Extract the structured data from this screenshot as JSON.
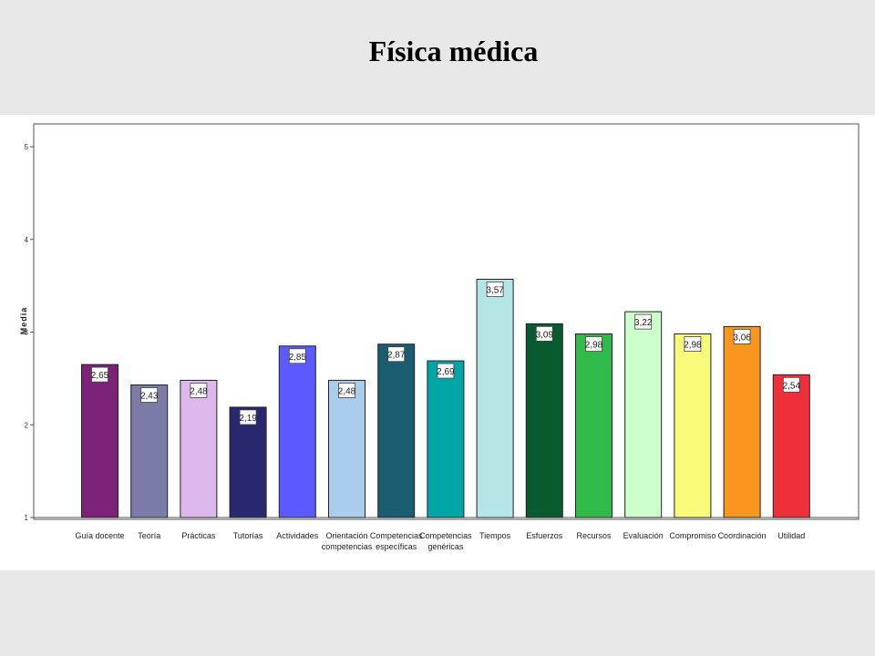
{
  "chart_data": {
    "type": "bar",
    "title": "Física médica",
    "xlabel": "",
    "ylabel": "Media",
    "ylim": [
      1,
      5.1
    ],
    "yticks": [
      "1",
      "2",
      "3",
      "4",
      "5"
    ],
    "grid": false,
    "categories": [
      [
        "Guía docente"
      ],
      [
        "Teoría"
      ],
      [
        "Prácticas"
      ],
      [
        "Tutorías"
      ],
      [
        "Actividades"
      ],
      [
        "Orientación",
        "competencias"
      ],
      [
        "Competencias",
        "específicas"
      ],
      [
        "Competencias",
        "genéricas"
      ],
      [
        "Tiempos"
      ],
      [
        "Esfuerzos"
      ],
      [
        "Recursos"
      ],
      [
        "Evaluación"
      ],
      [
        "Compromiso"
      ],
      [
        "Coordinación"
      ],
      [
        "Utilidad"
      ]
    ],
    "values": [
      2.65,
      2.43,
      2.48,
      2.19,
      2.85,
      2.48,
      2.87,
      2.69,
      3.57,
      3.09,
      2.98,
      3.22,
      2.98,
      3.06,
      2.54
    ],
    "value_labels": [
      "2,65",
      "2,43",
      "2,48",
      "2,19",
      "2,85",
      "2,48",
      "2,87",
      "2,69",
      "3,57",
      "3,09",
      "2,98",
      "3,22",
      "2,98",
      "3,06",
      "2,54"
    ],
    "colors": [
      "#7b2378",
      "#7b7ba8",
      "#dcb8ec",
      "#282870",
      "#5a5aff",
      "#aacdee",
      "#1a5c70",
      "#00a5a5",
      "#b5e5e5",
      "#0a5a30",
      "#2fba4a",
      "#ccffcc",
      "#fafa7a",
      "#f8961e",
      "#ef2f3a"
    ]
  }
}
